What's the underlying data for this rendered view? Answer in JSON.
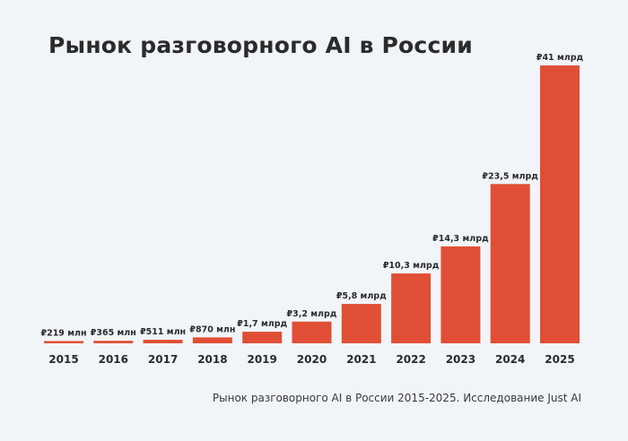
{
  "chart_data": {
    "type": "bar",
    "title": "Рынок разговорного AI в России",
    "categories": [
      "2015",
      "2016",
      "2017",
      "2018",
      "2019",
      "2020",
      "2021",
      "2022",
      "2023",
      "2024",
      "2025"
    ],
    "values": [
      0.219,
      0.365,
      0.511,
      0.87,
      1.7,
      3.2,
      5.8,
      10.3,
      14.3,
      23.5,
      41
    ],
    "value_labels": [
      "₽219 млн",
      "₽365 млн",
      "₽511 млн",
      "₽870 млн",
      "₽1,7 млрд",
      "₽3,2 млрд",
      "₽5,8 млрд",
      "₽10,3 млрд",
      "₽14,3 млрд",
      "₽23,5 млрд",
      "₽41 млрд"
    ],
    "caption": "Рынок разговорного AI в России 2015-2025. Исследование Just AI",
    "bar_color": "#e04f35",
    "grid": false,
    "legend": false
  }
}
